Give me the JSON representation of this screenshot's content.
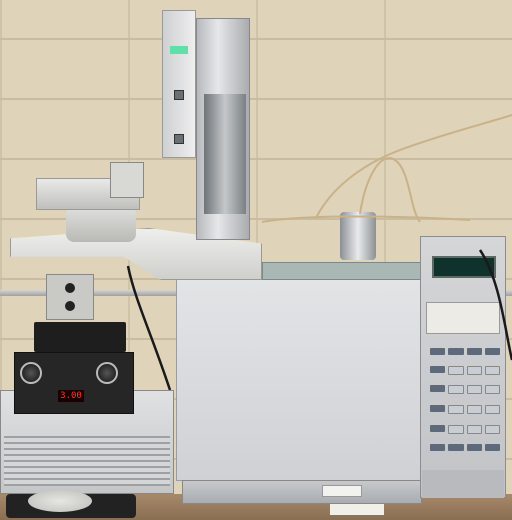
{
  "keypad": {
    "display_text": ""
  },
  "discharge_controller": {
    "display_value": "3.00"
  }
}
